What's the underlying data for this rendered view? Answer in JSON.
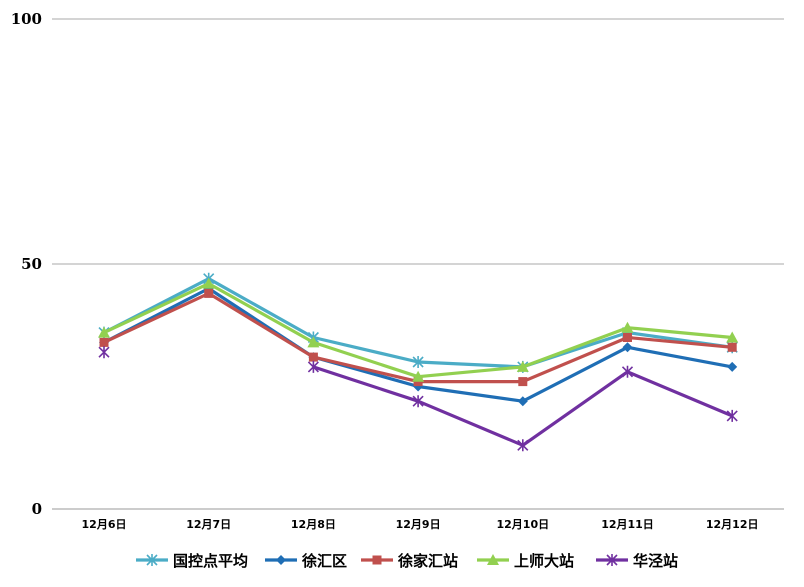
{
  "chart_data": {
    "type": "line",
    "title": "",
    "xlabel": "",
    "ylabel": "",
    "ylim": [
      0,
      100
    ],
    "yticks": [
      0,
      50,
      100
    ],
    "categories": [
      "12月6日",
      "12月7日",
      "12月8日",
      "12月9日",
      "12月10日",
      "12月11日",
      "12月12日"
    ],
    "legend_position": "bottom",
    "series": [
      {
        "name": "国控点平均",
        "color": "#4bacc6",
        "marker": "star",
        "values": [
          36,
          47,
          35,
          30,
          29,
          36,
          33
        ]
      },
      {
        "name": "徐汇区",
        "color": "#1f6eb5",
        "marker": "diamond",
        "values": [
          34,
          45,
          31,
          25,
          22,
          33,
          29
        ]
      },
      {
        "name": "徐家汇站",
        "color": "#c0504d",
        "marker": "square",
        "values": [
          34,
          44,
          31,
          26,
          26,
          35,
          33
        ]
      },
      {
        "name": "上师大站",
        "color": "#92d050",
        "marker": "triangle",
        "values": [
          36,
          46,
          34,
          27,
          29,
          37,
          35
        ]
      },
      {
        "name": "华泾站",
        "color": "#7030a0",
        "marker": "xstar",
        "values": [
          32,
          null,
          29,
          22,
          13,
          28,
          19
        ]
      }
    ]
  }
}
